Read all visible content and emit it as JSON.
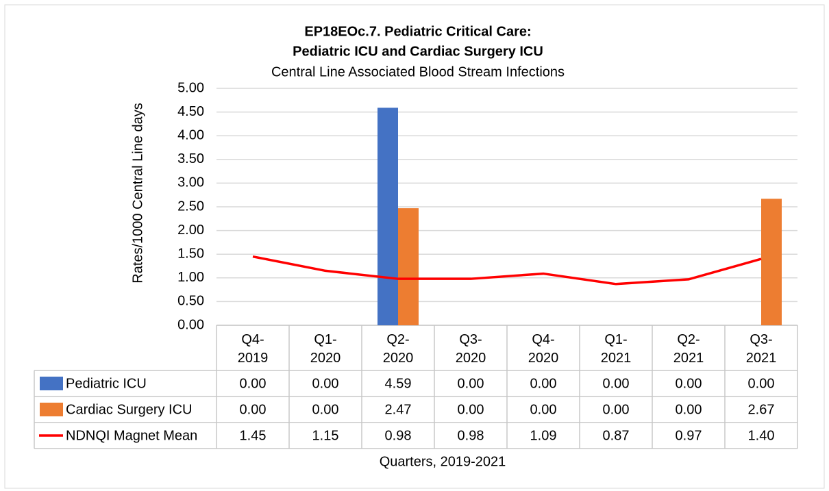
{
  "chart_data": {
    "type": "bar",
    "title": "EP18EOc.7. Pediatric Critical Care:",
    "subtitle": "Pediatric ICU and Cardiac Surgery ICU",
    "subtitle2": "Central Line Associated Blood Stream Infections",
    "y_label": "Rates/1000 Central Line days",
    "x_label": "Quarters, 2019-2021",
    "categories": [
      "Q4-2019",
      "Q1-2020",
      "Q2-2020",
      "Q3-2020",
      "Q4-2020",
      "Q1-2021",
      "Q2-2021",
      "Q3-2021"
    ],
    "series": [
      {
        "name": "Pediatric ICU",
        "type": "bar",
        "color": "#4472c4",
        "values": [
          0,
          0,
          4.59,
          0,
          0,
          0,
          0,
          0
        ],
        "value_labels": [
          "0.00",
          "0.00",
          "4.59",
          "0.00",
          "0.00",
          "0.00",
          "0.00",
          "0.00"
        ]
      },
      {
        "name": "Cardiac Surgery ICU",
        "type": "bar",
        "color": "#ed7d31",
        "values": [
          0,
          0,
          2.47,
          0,
          0,
          0,
          0,
          2.67
        ],
        "value_labels": [
          "0.00",
          "0.00",
          "2.47",
          "0.00",
          "0.00",
          "0.00",
          "0.00",
          "2.67"
        ]
      },
      {
        "name": "NDNQI Magnet Mean",
        "type": "line",
        "color": "#ff0000",
        "values": [
          1.45,
          1.15,
          0.98,
          0.98,
          1.09,
          0.87,
          0.97,
          1.4
        ],
        "value_labels": [
          "1.45",
          "1.15",
          "0.98",
          "0.98",
          "1.09",
          "0.87",
          "0.97",
          "1.40"
        ]
      }
    ],
    "ylim": [
      0,
      5
    ],
    "yticks": [
      {
        "value": 0,
        "label": "0.00"
      },
      {
        "value": 0.5,
        "label": "0.50"
      },
      {
        "value": 1,
        "label": "1.00"
      },
      {
        "value": 1.5,
        "label": "1.50"
      },
      {
        "value": 2,
        "label": "2.00"
      },
      {
        "value": 2.5,
        "label": "2.50"
      },
      {
        "value": 3,
        "label": "3.00"
      },
      {
        "value": 3.5,
        "label": "3.50"
      },
      {
        "value": 4,
        "label": "4.00"
      },
      {
        "value": 4.5,
        "label": "4.50"
      },
      {
        "value": 5,
        "label": "5.00"
      }
    ],
    "grid": true
  }
}
